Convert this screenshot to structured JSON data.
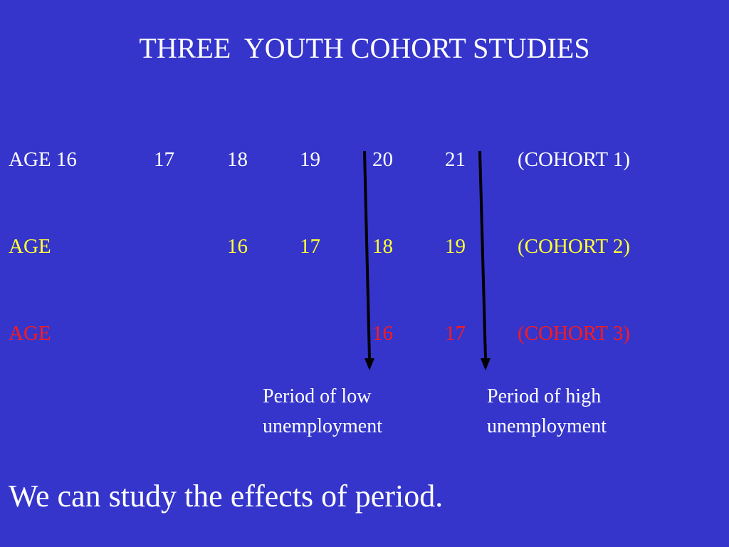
{
  "slide": {
    "title": "THREE  YOUTH COHORT STUDIES",
    "rows": [
      {
        "prefix": "AGE 16",
        "ages": [
          "17",
          "18",
          "19",
          "20",
          "21"
        ],
        "cohort": "(COHORT 1)",
        "color": "#ffffff"
      },
      {
        "prefix": "AGE",
        "ages": [
          "16",
          "17",
          "18",
          "19"
        ],
        "cohort": "(COHORT 2)",
        "color": "#ffff33"
      },
      {
        "prefix": "AGE",
        "ages": [
          "16",
          "17"
        ],
        "cohort": "(COHORT 3)",
        "color": "#ff1a1a"
      }
    ],
    "periods": {
      "low": {
        "line1": "Period of low",
        "line2": "unemployment"
      },
      "high": {
        "line1": "Period of high",
        "line2": "unemployment"
      }
    },
    "conclusion": "We can study the effects of period."
  }
}
